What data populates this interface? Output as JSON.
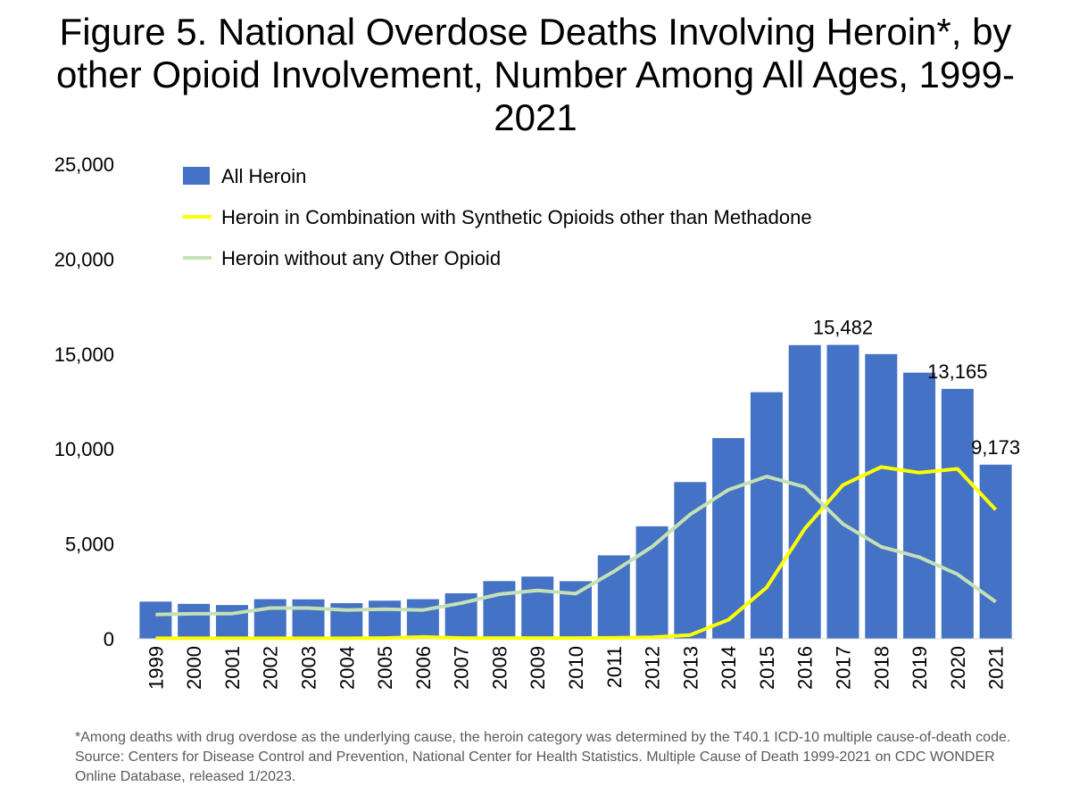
{
  "chart_data": {
    "type": "bar",
    "title": "Figure 5. National Overdose Deaths Involving Heroin*, by other Opioid Involvement, Number Among All Ages, 1999-2021",
    "footnote": "*Among deaths with drug overdose as the underlying cause, the heroin category was determined by the T40.1 ICD-10 multiple cause-of-death code. Source: Centers for Disease Control and Prevention, National Center for Health Statistics. Multiple Cause of Death 1999-2021 on CDC WONDER Online Database, released 1/2023.",
    "xlabel": "",
    "ylabel": "",
    "ylim": [
      0,
      25000
    ],
    "yticks": [
      0,
      5000,
      10000,
      15000,
      20000,
      25000
    ],
    "ytick_labels": [
      "0",
      "5,000",
      "10,000",
      "15,000",
      "20,000",
      "25,000"
    ],
    "grid": false,
    "legend": "top-left",
    "categories": [
      "1999",
      "2000",
      "2001",
      "2002",
      "2003",
      "2004",
      "2005",
      "2006",
      "2007",
      "2008",
      "2009",
      "2010",
      "2011",
      "2012",
      "2013",
      "2014",
      "2015",
      "2016",
      "2017",
      "2018",
      "2019",
      "2020",
      "2021"
    ],
    "series": [
      {
        "name": "All Heroin",
        "type": "bar",
        "color": "#4472C4",
        "values": [
          1960,
          1842,
          1779,
          2089,
          2080,
          1878,
          2009,
          2088,
          2399,
          3041,
          3278,
          3036,
          4397,
          5925,
          8257,
          10574,
          12989,
          15469,
          15482,
          14996,
          14019,
          13165,
          9173
        ]
      },
      {
        "name": "Heroin in Combination with Synthetic Opioids other than Methadone",
        "type": "line",
        "color": "#FFFF00",
        "values": [
          30,
          30,
          30,
          30,
          30,
          30,
          40,
          100,
          40,
          40,
          40,
          40,
          50,
          80,
          200,
          1000,
          2700,
          5800,
          8100,
          9050,
          8750,
          8950,
          6800
        ]
      },
      {
        "name": "Heroin without any Other Opioid",
        "type": "line",
        "color": "#C5E0B4",
        "values": [
          1280,
          1320,
          1330,
          1620,
          1620,
          1520,
          1560,
          1520,
          1880,
          2350,
          2550,
          2380,
          3550,
          4850,
          6550,
          7850,
          8550,
          8000,
          6050,
          4850,
          4300,
          3400,
          1950
        ]
      }
    ],
    "data_labels": [
      {
        "category": "2017",
        "text": "15,482"
      },
      {
        "category": "2020",
        "text": "13,165"
      },
      {
        "category": "2021",
        "text": "9,173"
      }
    ]
  }
}
